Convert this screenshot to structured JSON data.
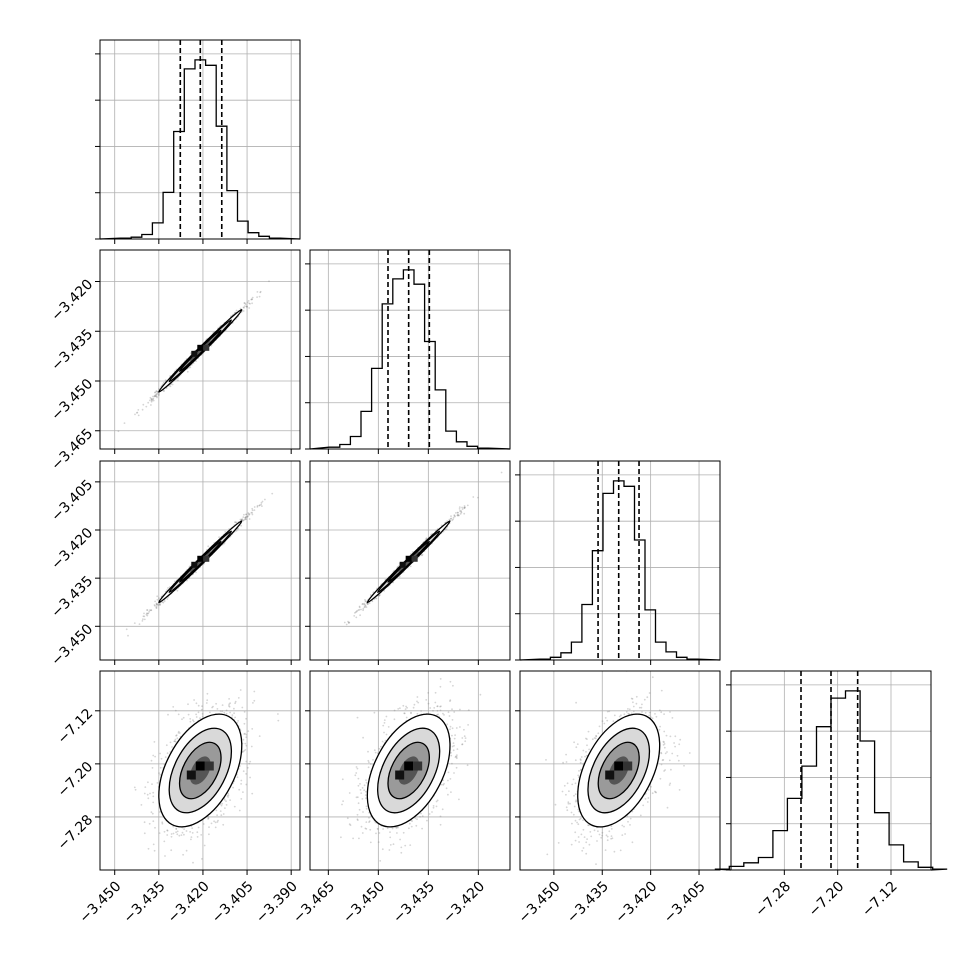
{
  "chart_data": {
    "type": "corner",
    "title": "",
    "parameters": [
      {
        "name": "",
        "range": [
          -3.455,
          -3.387
        ],
        "ticks": [
          "−3.450",
          "−3.435",
          "−3.420",
          "−3.405",
          "−3.390"
        ],
        "tick_values": [
          -3.45,
          -3.435,
          -3.42,
          -3.405,
          -3.39
        ],
        "quantiles": [
          -3.4277,
          -3.4209,
          -3.4136
        ],
        "hist": [
          0.005,
          0.01,
          0.025,
          0.09,
          0.26,
          0.6,
          0.95,
          1.0,
          0.97,
          0.63,
          0.27,
          0.1,
          0.035,
          0.015,
          0.005
        ]
      },
      {
        "name": "",
        "range": [
          -3.4705,
          -3.4105
        ],
        "ticks": [
          "−3.465",
          "−3.450",
          "−3.435",
          "−3.420"
        ],
        "tick_values": [
          -3.465,
          -3.45,
          -3.435,
          -3.42
        ],
        "quantiles": [
          -3.4471,
          -3.4409,
          -3.4347
        ],
        "hist": [
          0.01,
          0.025,
          0.07,
          0.21,
          0.45,
          0.81,
          0.95,
          1.0,
          0.92,
          0.6,
          0.33,
          0.1,
          0.04,
          0.015,
          0.005
        ]
      },
      {
        "name": "",
        "range": [
          -3.4605,
          -3.3985
        ],
        "ticks": [
          "−3.450",
          "−3.435",
          "−3.420",
          "−3.405"
        ],
        "tick_values": [
          -3.45,
          -3.435,
          -3.42,
          -3.405
        ],
        "quantiles": [
          -3.4363,
          -3.4299,
          -3.4236
        ],
        "hist": [
          0.005,
          0.015,
          0.04,
          0.1,
          0.31,
          0.61,
          0.93,
          1.0,
          0.97,
          0.67,
          0.28,
          0.1,
          0.045,
          0.015,
          0.005
        ]
      },
      {
        "name": "",
        "range": [
          -7.36,
          -7.06
        ],
        "ticks": [
          "−7.28",
          "−7.20",
          "−7.12"
        ],
        "tick_values": [
          -7.28,
          -7.2,
          -7.12
        ],
        "quantiles": [
          -7.255,
          -7.21,
          -7.17
        ],
        "hist": [
          0.005,
          0.02,
          0.04,
          0.07,
          0.22,
          0.4,
          0.58,
          0.8,
          0.96,
          1.0,
          0.72,
          0.32,
          0.14,
          0.045,
          0.015,
          0.005
        ]
      }
    ],
    "correlations": [
      {
        "x": 0,
        "y": 1,
        "rho": 0.995
      },
      {
        "x": 0,
        "y": 2,
        "rho": 0.995
      },
      {
        "x": 1,
        "y": 2,
        "rho": 0.995
      },
      {
        "x": 0,
        "y": 3,
        "rho": 0.45
      },
      {
        "x": 1,
        "y": 3,
        "rho": 0.45
      },
      {
        "x": 2,
        "y": 3,
        "rho": 0.45
      }
    ],
    "contour_levels": [
      "0.5 sigma",
      "1 sigma",
      "1.5 sigma",
      "2 sigma"
    ],
    "grid": true,
    "colors": {
      "lines": "#000000",
      "grid": "#b0b0b0",
      "points": "#888888",
      "background": "#ffffff"
    }
  }
}
